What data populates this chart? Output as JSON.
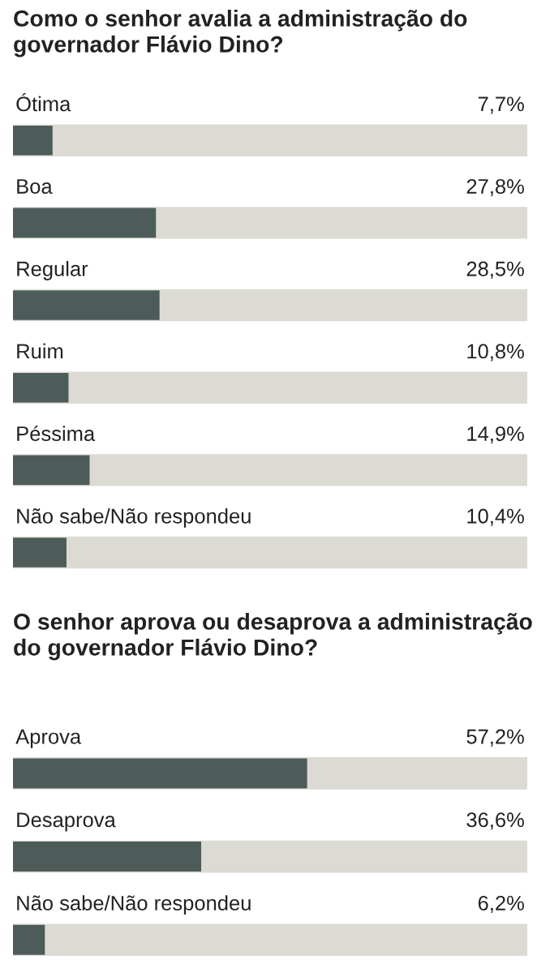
{
  "chart_data": [
    {
      "type": "bar",
      "orientation": "horizontal",
      "title": "Como o senhor avalia a administração do governador Flávio Dino?",
      "categories": [
        "Ótima",
        "Boa",
        "Regular",
        "Ruim",
        "Péssima",
        "Não sabe/Não respondeu"
      ],
      "values": [
        7.7,
        27.8,
        28.5,
        10.8,
        14.9,
        10.4
      ],
      "value_labels": [
        "7,7%",
        "27,8%",
        "28,5%",
        "10,8%",
        "14,9%",
        "10,4%"
      ],
      "color": "#4d5b59",
      "xlim": [
        0,
        100
      ],
      "tick_labels": false
    },
    {
      "type": "bar",
      "orientation": "horizontal",
      "title": "O senhor aprova ou desaprova a administração do governador Flávio Dino?",
      "categories": [
        "Aprova",
        "Desaprova",
        "Não sabe/Não respondeu"
      ],
      "values": [
        57.2,
        36.6,
        6.2
      ],
      "value_labels": [
        "57,2%",
        "36,6%",
        "6,2%"
      ],
      "color": "#4d5b59",
      "xlim": [
        0,
        100
      ],
      "tick_labels": false
    }
  ]
}
